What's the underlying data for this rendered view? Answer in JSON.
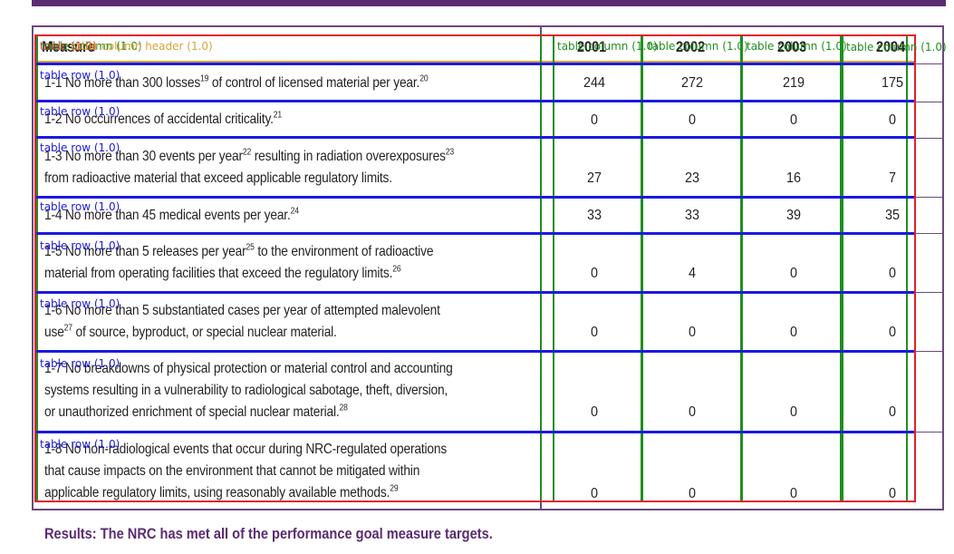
{
  "table": {
    "header": {
      "measure": "Measure",
      "years": [
        "2001",
        "2002",
        "2003",
        "2004"
      ]
    },
    "rows": [
      {
        "id": "1-1",
        "text": "1-1 No more than 300 losses",
        "sup1": "19",
        "rest": " of control of licensed material per year.",
        "sup2": "20",
        "values": [
          "244",
          "272",
          "219",
          "175"
        ]
      },
      {
        "id": "1-2",
        "text": "1-2 No occurrences of accidental criticality.",
        "sup1": "21",
        "values": [
          "0",
          "0",
          "0",
          "0"
        ]
      },
      {
        "id": "1-3",
        "line1a": "1-3 No more than 30 events per year",
        "sup1": "22",
        "line1b": " resulting in radiation overexposures",
        "sup2": "23",
        "line2": "from radioactive material that exceed applicable regulatory limits.",
        "values": [
          "27",
          "23",
          "16",
          "7"
        ]
      },
      {
        "id": "1-4",
        "text": "1-4 No more than 45 medical events per year.",
        "sup1": "24",
        "values": [
          "33",
          "33",
          "39",
          "35"
        ]
      },
      {
        "id": "1-5",
        "line1a": "1-5 No more than 5 releases per year",
        "sup1": "25",
        "line1b": " to the environment of radioactive",
        "line2": "material from operating  facilities that exceed the regulatory limits.",
        "sup2": "26",
        "values": [
          "0",
          "4",
          "0",
          "0"
        ]
      },
      {
        "id": "1-6",
        "line1": "1-6 No more than 5 substantiated cases per year of attempted malevolent",
        "line2a": "use",
        "sup1": "27",
        "line2b": " of source, byproduct, or special nuclear material.",
        "values": [
          "0",
          "0",
          "0",
          "0"
        ]
      },
      {
        "id": "1-7",
        "line1": "1-7 No breakdowns of physical protection or material control and accounting",
        "line2": "systems resulting in a vulnerability to radiological sabotage, theft, diversion,",
        "line3": "or unauthorized enrichment of special nuclear material.",
        "sup1": "28",
        "values": [
          "0",
          "0",
          "0",
          "0"
        ]
      },
      {
        "id": "1-8",
        "line1": "1-8 No non-radiological events that occur during NRC-regulated operations",
        "line2": "that cause impacts on the environment that cannot be mitigated within",
        "line3": "applicable regulatory limits, using reasonably available methods.",
        "sup1": "29",
        "values": [
          "0",
          "0",
          "0",
          "0"
        ]
      }
    ]
  },
  "results": "Results:  The NRC has met all of the performance goal measure targets.",
  "overlay": {
    "table_label": "table (1.0)",
    "column_label": "table column (1.0)",
    "column_header_label": "table column header (1.0)",
    "row_label": "table row (1.0)"
  },
  "colors": {
    "brand_purple": "#5b2b72",
    "frame": "#6a4a7c",
    "det_table": "#e0202c",
    "det_column": "#1f8f1f",
    "det_row": "#1a1ae0",
    "det_header": "#d9a33a"
  }
}
